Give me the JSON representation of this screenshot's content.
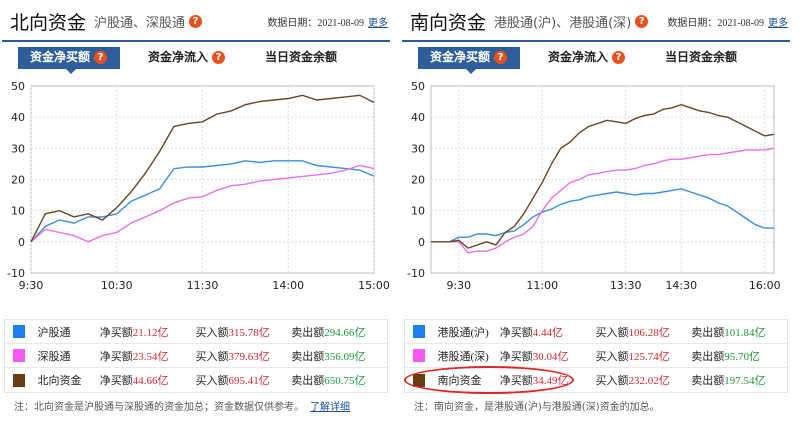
{
  "panels": [
    {
      "title": "北向资金",
      "subtitle": "沪股通、深股通",
      "date_label": "数据日期：2021-08-09",
      "more": "更多",
      "tabs": [
        "资金净买额",
        "资金净流入",
        "当日资金余额"
      ],
      "active_tab": 0,
      "legend": [
        {
          "name": "沪股通",
          "color": "#1e7ff0",
          "net_label": "净买额",
          "net": "21.12亿",
          "buy_label": "买入额",
          "buy": "315.78亿",
          "sell_label": "卖出额",
          "sell": "294.66亿"
        },
        {
          "name": "深股通",
          "color": "#f45af0",
          "net_label": "净买额",
          "net": "23.54亿",
          "buy_label": "买入额",
          "buy": "379.63亿",
          "sell_label": "卖出额",
          "sell": "356.09亿"
        },
        {
          "name": "北向资金",
          "color": "#6b3a10",
          "net_label": "净买额",
          "net": "44.66亿",
          "buy_label": "买入额",
          "buy": "695.41亿",
          "sell_label": "卖出额",
          "sell": "650.75亿"
        }
      ],
      "note": "注：北向资金是沪股通与深股通的资金加总；资金数据仅供参考。",
      "note_link": "了解详细"
    },
    {
      "title": "南向资金",
      "subtitle": "港股通(沪)、港股通(深)",
      "date_label": "数据日期：2021-08-09",
      "more": "更多",
      "tabs": [
        "资金净买额",
        "资金净流入",
        "当日资金余额"
      ],
      "active_tab": 0,
      "legend": [
        {
          "name": "港股通(沪)",
          "color": "#1e7ff0",
          "net_label": "净买额",
          "net": "4.44亿",
          "buy_label": "买入额",
          "buy": "106.28亿",
          "sell_label": "卖出额",
          "sell": "101.84亿"
        },
        {
          "name": "港股通(深)",
          "color": "#f45af0",
          "net_label": "净买额",
          "net": "30.04亿",
          "buy_label": "买入额",
          "buy": "125.74亿",
          "sell_label": "卖出额",
          "sell": "95.70亿"
        },
        {
          "name": "南向资金",
          "color": "#6b3a10",
          "net_label": "净买额",
          "net": "34.49亿",
          "buy_label": "买入额",
          "buy": "232.02亿",
          "sell_label": "卖出额",
          "sell": "197.54亿"
        }
      ],
      "note": "注：南向资金，是港股通(沪)与港股通(深)资金的加总。",
      "note_link": ""
    }
  ],
  "help_icon": "question-mark-icon",
  "chart_data": [
    {
      "type": "line",
      "ylim": [
        -10,
        50
      ],
      "yticks": [
        50,
        40,
        30,
        20,
        10,
        0,
        -10
      ],
      "grid": true,
      "x_unit": "trading minutes from 9:30",
      "xlim": [
        0,
        240
      ],
      "xticks": [
        {
          "v": 0,
          "label": "9:30"
        },
        {
          "v": 60,
          "label": "10:30"
        },
        {
          "v": 120,
          "label": "11:30"
        },
        {
          "v": 180,
          "label": "14:00"
        },
        {
          "v": 240,
          "label": "15:00"
        }
      ],
      "x": [
        0,
        10,
        20,
        30,
        40,
        50,
        60,
        70,
        80,
        90,
        100,
        110,
        120,
        130,
        140,
        150,
        160,
        170,
        180,
        190,
        200,
        210,
        220,
        230,
        240
      ],
      "series": [
        {
          "name": "沪股通",
          "color": "#3a8ee6",
          "values": [
            0,
            5,
            7,
            6,
            8,
            8,
            9,
            13,
            15,
            17,
            23.5,
            24,
            24,
            24.5,
            25,
            26,
            25.5,
            26,
            26,
            26,
            24.5,
            24,
            23.5,
            23,
            21.1
          ]
        },
        {
          "name": "深股通",
          "color": "#ee6ee8",
          "values": [
            0,
            4,
            3,
            2,
            0,
            2,
            3,
            6,
            8,
            10,
            12.5,
            14,
            14.5,
            16.5,
            18,
            18.5,
            19.5,
            20,
            20.5,
            21,
            21.5,
            22,
            23,
            24.5,
            23.5
          ]
        },
        {
          "name": "北向资金",
          "color": "#6b4420",
          "values": [
            0,
            9,
            10,
            8,
            9,
            7,
            11,
            16,
            22,
            29,
            37,
            38,
            38.5,
            41,
            42,
            44,
            45,
            45.5,
            46,
            47,
            45.5,
            46,
            46.5,
            47,
            44.7
          ]
        }
      ]
    },
    {
      "type": "line",
      "ylim": [
        -10,
        50
      ],
      "yticks": [
        50,
        40,
        30,
        20,
        10,
        0,
        -10
      ],
      "grid": true,
      "x_unit": "trading minutes from 9:00",
      "xlim": [
        0,
        370
      ],
      "xticks": [
        {
          "v": 30,
          "label": "9:30"
        },
        {
          "v": 120,
          "label": "11:00"
        },
        {
          "v": 210,
          "label": "13:30"
        },
        {
          "v": 270,
          "label": "14:30"
        },
        {
          "v": 360,
          "label": "16:00"
        }
      ],
      "x": [
        0,
        10,
        20,
        30,
        40,
        50,
        60,
        70,
        80,
        90,
        100,
        110,
        120,
        130,
        140,
        150,
        160,
        170,
        180,
        190,
        200,
        210,
        220,
        230,
        240,
        250,
        260,
        270,
        280,
        290,
        300,
        310,
        320,
        330,
        340,
        350,
        360,
        370
      ],
      "series": [
        {
          "name": "港股通(沪)",
          "color": "#3a8ee6",
          "values": [
            0,
            0,
            0,
            1.5,
            1.5,
            2.5,
            2.5,
            2,
            3,
            3.5,
            5.5,
            8,
            9.5,
            10.5,
            12,
            13,
            13.5,
            14.5,
            15,
            15.5,
            16,
            15.5,
            15,
            15.5,
            15.5,
            16,
            16.5,
            17,
            16,
            15,
            14,
            12.5,
            11.5,
            9.5,
            7.5,
            5.5,
            4.4,
            4.4
          ]
        },
        {
          "name": "港股通(深)",
          "color": "#ee6ee8",
          "values": [
            0,
            0,
            0,
            0,
            -3.5,
            -3,
            -3,
            -2,
            0,
            1.5,
            2.5,
            5,
            10,
            14,
            16.5,
            19,
            20,
            21.5,
            22,
            22.5,
            23,
            23,
            23.5,
            24.5,
            25,
            26,
            26.5,
            26.5,
            27,
            27.5,
            28,
            28,
            28.5,
            29,
            29.5,
            29.5,
            29.5,
            30
          ]
        },
        {
          "name": "南向资金",
          "color": "#6b4420",
          "values": [
            0,
            0,
            0,
            0.5,
            -2,
            -1,
            0,
            -1,
            3,
            5,
            9,
            14,
            19,
            25,
            30,
            32,
            35,
            37,
            38,
            39,
            38.5,
            38,
            39.5,
            40.5,
            41,
            42.5,
            43,
            44,
            43,
            42,
            41.5,
            40.5,
            40,
            38.5,
            37,
            35.5,
            34,
            34.5
          ]
        }
      ]
    }
  ]
}
